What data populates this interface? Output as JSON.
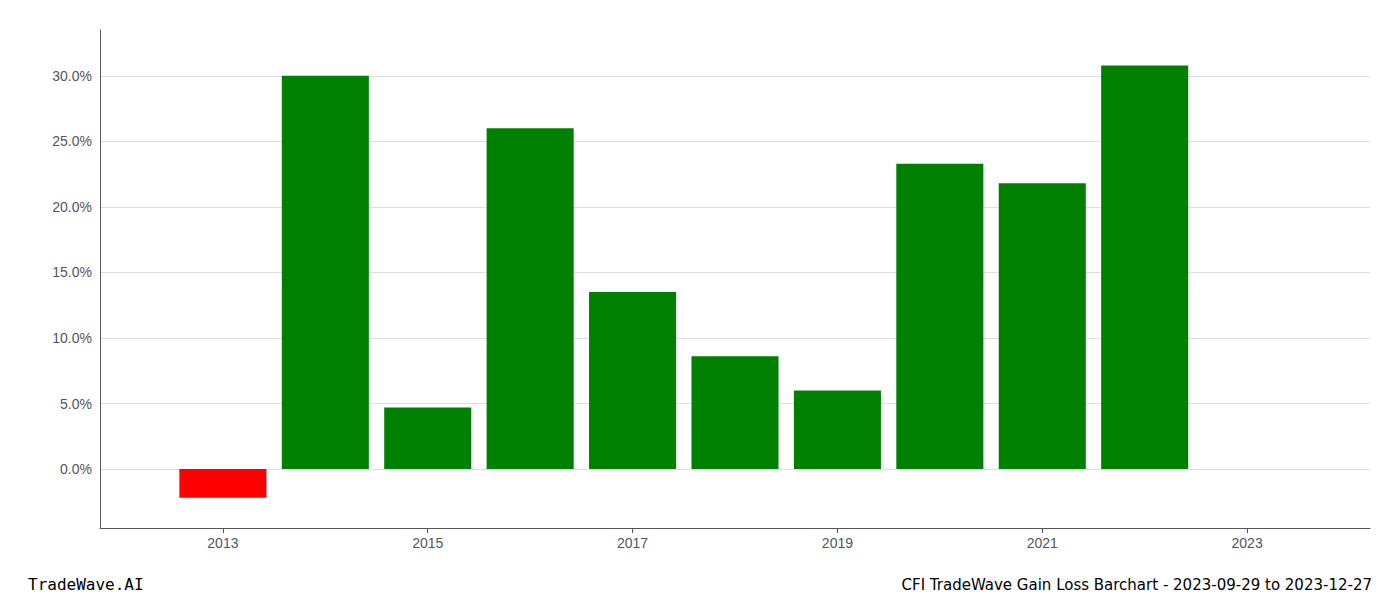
{
  "chart_data": {
    "type": "bar",
    "title": "CFI TradeWave Gain Loss Barchart - 2023-09-29 to 2023-12-27",
    "annotations": [
      "TradeWave.AI"
    ],
    "x": [
      2013,
      2014,
      2015,
      2016,
      2017,
      2018,
      2019,
      2020,
      2021,
      2022,
      2023
    ],
    "values": [
      -0.022,
      0.3,
      0.047,
      0.26,
      0.135,
      0.086,
      0.06,
      0.233,
      0.218,
      0.308,
      null
    ],
    "colors": [
      "#ff0000",
      "#008000",
      "#008000",
      "#008000",
      "#008000",
      "#008000",
      "#008000",
      "#008000",
      "#008000",
      "#008000",
      null
    ],
    "xlim": [
      2011.8,
      2024.2
    ],
    "xticks": [
      2013,
      2015,
      2017,
      2019,
      2021,
      2023
    ],
    "ylim": [
      -0.045,
      0.335
    ],
    "yticks": [
      {
        "value": 0.0,
        "label": "0.0%"
      },
      {
        "value": 0.05,
        "label": "5.0%"
      },
      {
        "value": 0.1,
        "label": "10.0%"
      },
      {
        "value": 0.15,
        "label": "15.0%"
      },
      {
        "value": 0.2,
        "label": "20.0%"
      },
      {
        "value": 0.25,
        "label": "25.0%"
      },
      {
        "value": 0.3,
        "label": "30.0%"
      }
    ],
    "grid": true
  }
}
